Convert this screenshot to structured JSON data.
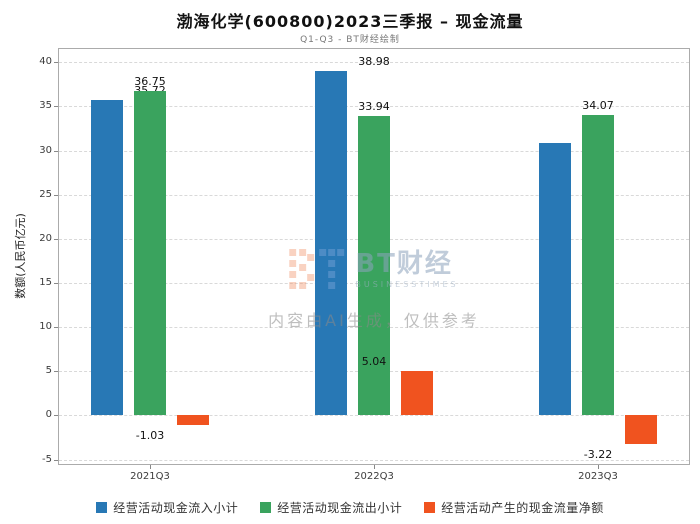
{
  "watermark": {
    "logo_text": "BT财经",
    "logo_sub": "BUSINESSTIMES",
    "disclaimer": "内容由AI生成，仅供参考"
  },
  "chart_data": {
    "type": "bar",
    "title": "渤海化学(600800)2023三季报 – 现金流量",
    "subtitle": "Q1-Q3 - BT财经绘制",
    "categories": [
      "2021Q3",
      "2022Q3",
      "2023Q3"
    ],
    "series": [
      {
        "name": "经营活动现金流入小计",
        "color": "#2878b5",
        "values": [
          35.72,
          38.98,
          30.84
        ]
      },
      {
        "name": "经营活动现金流出小计",
        "color": "#3aa35e",
        "values": [
          36.75,
          33.94,
          34.07
        ]
      },
      {
        "name": "经营活动产生的现金流量净额",
        "color": "#f0531f",
        "values": [
          -1.03,
          5.04,
          -3.22
        ]
      }
    ],
    "xlabel": "",
    "ylabel": "数额(人民币亿元)",
    "ylim": [
      -5,
      40
    ],
    "ytick_step": 5,
    "grid": true,
    "grid_style": "dashed",
    "legend_position": "bottom"
  }
}
